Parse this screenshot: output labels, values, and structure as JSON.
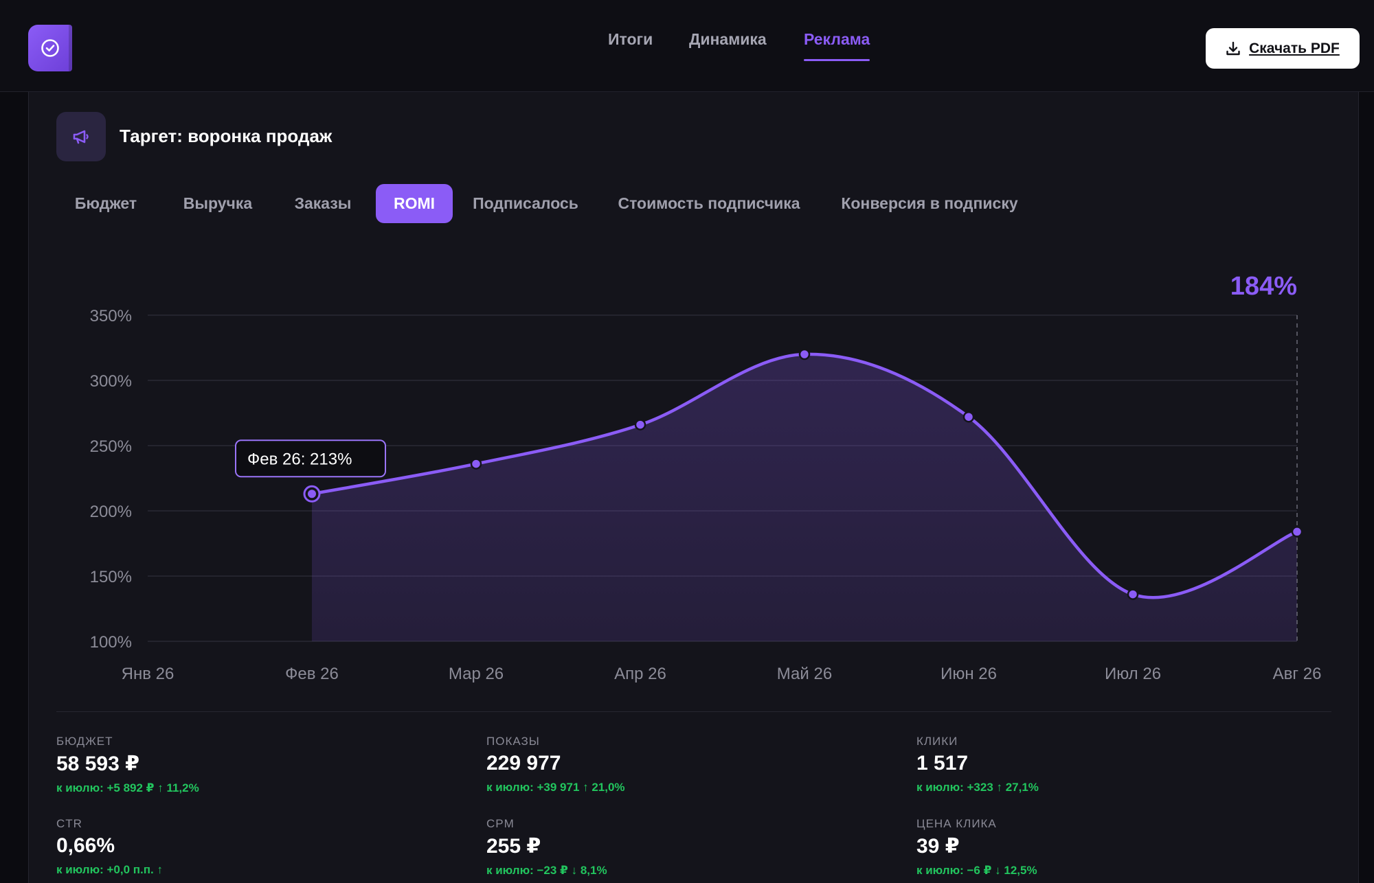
{
  "nav": {
    "items": [
      {
        "label": "Итоги",
        "active": false
      },
      {
        "label": "Динамика",
        "active": false
      },
      {
        "label": "Реклама",
        "active": true
      }
    ],
    "download_label": "Скачать PDF"
  },
  "card": {
    "title": "Таргет: воронка продаж",
    "icon": "megaphone-icon",
    "tabs": [
      {
        "label": "Бюджет",
        "active": false
      },
      {
        "label": "Выручка",
        "active": false
      },
      {
        "label": "Заказы",
        "active": false
      },
      {
        "label": "ROMI",
        "active": true
      },
      {
        "label": "Подписалось",
        "active": false
      },
      {
        "label": "Стоимость подписчика",
        "active": false
      },
      {
        "label": "Конверсия в подписку",
        "active": false
      }
    ]
  },
  "chart_data": {
    "type": "area",
    "categories": [
      "Янв 26",
      "Фев 26",
      "Мар 26",
      "Апр 26",
      "Май 26",
      "Июн 26",
      "Июл 26",
      "Авг 26"
    ],
    "series": [
      {
        "values": [
          null,
          213,
          236,
          266,
          320,
          272,
          136,
          184
        ],
        "color": "#8b5cf6"
      }
    ],
    "ylim": [
      100,
      350
    ],
    "yticks": [
      "100%",
      "150%",
      "200%",
      "250%",
      "300%",
      "350%"
    ],
    "grid": true,
    "tooltip": "Фев 26: 213%",
    "latest_value_label": "184%"
  },
  "metrics": [
    {
      "label": "БЮДЖЕТ",
      "value": "58 593 ₽",
      "delta": "к июлю: +5 892 ₽ ↑ 11,2%"
    },
    {
      "label": "ПОКАЗЫ",
      "value": "229 977",
      "delta": "к июлю: +39 971 ↑ 21,0%"
    },
    {
      "label": "КЛИКИ",
      "value": "1 517",
      "delta": "к июлю: +323 ↑ 27,1%"
    },
    {
      "label": "CTR",
      "value": "0,66%",
      "delta": "к июлю: +0,0 п.п. ↑"
    },
    {
      "label": "CPM",
      "value": "255 ₽",
      "delta": "к июлю: −23 ₽ ↓ 8,1%"
    },
    {
      "label": "ЦЕНА КЛИКА",
      "value": "39 ₽",
      "delta": "к июлю: −6 ₽ ↓ 12,5%"
    }
  ],
  "colors": {
    "accent": "#8b5cf6",
    "positive": "#22c55e",
    "background": "#14141b"
  }
}
